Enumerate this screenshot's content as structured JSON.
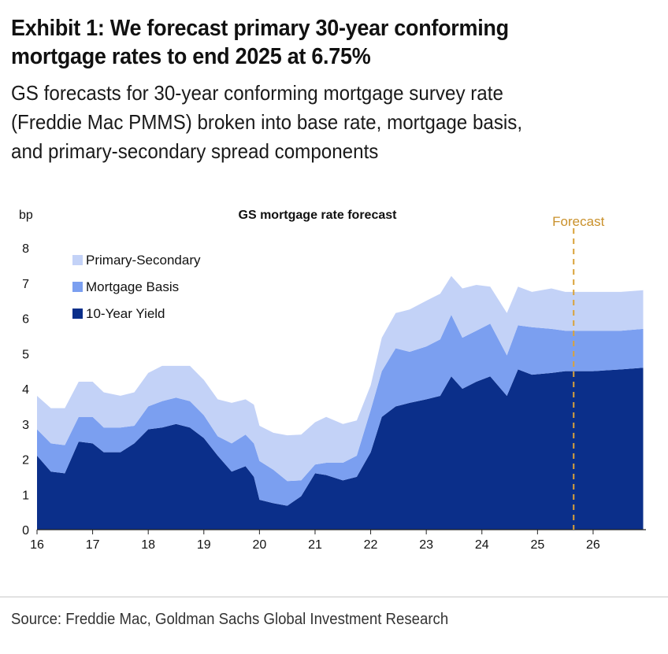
{
  "header": {
    "title_line1": "Exhibit 1: We forecast primary 30-year conforming",
    "title_line2": "mortgage rates to end 2025 at 6.75%",
    "subtitle_line1": "GS forecasts for 30-year conforming mortgage survey rate",
    "subtitle_line2": "(Freddie Mac PMMS) broken into base rate, mortgage basis,",
    "subtitle_line3": "and primary-secondary spread components"
  },
  "footer": {
    "source": "Source: Freddie Mac, Goldman Sachs Global Investment Research"
  },
  "colors": {
    "ten_year": "#0b2f8a",
    "basis": "#7b9ff0",
    "spread": "#c3d2f7",
    "forecast_line": "#d9a23a",
    "forecast_text": "#c9902a"
  },
  "chart_data": {
    "type": "area",
    "stacked": true,
    "title": "GS mortgage rate forecast",
    "ylabel": "bp",
    "xlabel": "",
    "ylim": [
      0,
      8
    ],
    "xlim": [
      16,
      26.95
    ],
    "yticks": [
      0,
      1,
      2,
      3,
      4,
      5,
      6,
      7,
      8
    ],
    "xticks": [
      16,
      17,
      18,
      19,
      20,
      21,
      22,
      23,
      24,
      25,
      26
    ],
    "xtick_labels": [
      "16",
      "17",
      "18",
      "19",
      "20",
      "21",
      "22",
      "23",
      "24",
      "25",
      "26"
    ],
    "forecast_start": 25.65,
    "forecast_label": "Forecast",
    "legend_position": "top-left",
    "x": [
      16.0,
      16.25,
      16.5,
      16.75,
      17.0,
      17.2,
      17.5,
      17.75,
      18.0,
      18.25,
      18.5,
      18.75,
      19.0,
      19.25,
      19.5,
      19.75,
      19.9,
      20.0,
      20.25,
      20.5,
      20.75,
      21.0,
      21.2,
      21.5,
      21.75,
      22.0,
      22.2,
      22.45,
      22.7,
      23.0,
      23.25,
      23.45,
      23.65,
      23.9,
      24.15,
      24.45,
      24.65,
      24.9,
      25.25,
      25.5,
      25.7,
      26.0,
      26.5,
      26.9
    ],
    "series": [
      {
        "name": "10-Year Yield",
        "values": [
          2.1,
          1.65,
          1.6,
          2.5,
          2.45,
          2.2,
          2.2,
          2.45,
          2.85,
          2.9,
          3.0,
          2.9,
          2.6,
          2.1,
          1.65,
          1.8,
          1.5,
          0.85,
          0.75,
          0.68,
          0.95,
          1.6,
          1.55,
          1.4,
          1.5,
          2.2,
          3.2,
          3.5,
          3.6,
          3.7,
          3.8,
          4.35,
          4.0,
          4.2,
          4.35,
          3.8,
          4.55,
          4.4,
          4.45,
          4.5,
          4.5,
          4.5,
          4.55,
          4.6
        ]
      },
      {
        "name": "Mortgage Basis",
        "values": [
          0.75,
          0.8,
          0.8,
          0.7,
          0.75,
          0.7,
          0.7,
          0.5,
          0.65,
          0.75,
          0.75,
          0.75,
          0.65,
          0.55,
          0.8,
          0.9,
          0.95,
          1.1,
          0.95,
          0.7,
          0.45,
          0.25,
          0.35,
          0.5,
          0.6,
          1.2,
          1.3,
          1.65,
          1.45,
          1.5,
          1.6,
          1.75,
          1.45,
          1.45,
          1.5,
          1.15,
          1.25,
          1.35,
          1.25,
          1.15,
          1.15,
          1.15,
          1.1,
          1.1
        ]
      },
      {
        "name": "Primary-Secondary",
        "values": [
          0.95,
          1.0,
          1.05,
          1.0,
          1.0,
          1.0,
          0.9,
          0.95,
          0.95,
          1.0,
          0.9,
          1.0,
          1.0,
          1.05,
          1.15,
          1.0,
          1.1,
          1.0,
          1.05,
          1.3,
          1.3,
          1.2,
          1.3,
          1.1,
          1.0,
          0.7,
          0.95,
          1.0,
          1.2,
          1.3,
          1.3,
          1.1,
          1.4,
          1.3,
          1.05,
          1.2,
          1.1,
          1.0,
          1.15,
          1.1,
          1.1,
          1.1,
          1.1,
          1.1
        ]
      }
    ]
  }
}
